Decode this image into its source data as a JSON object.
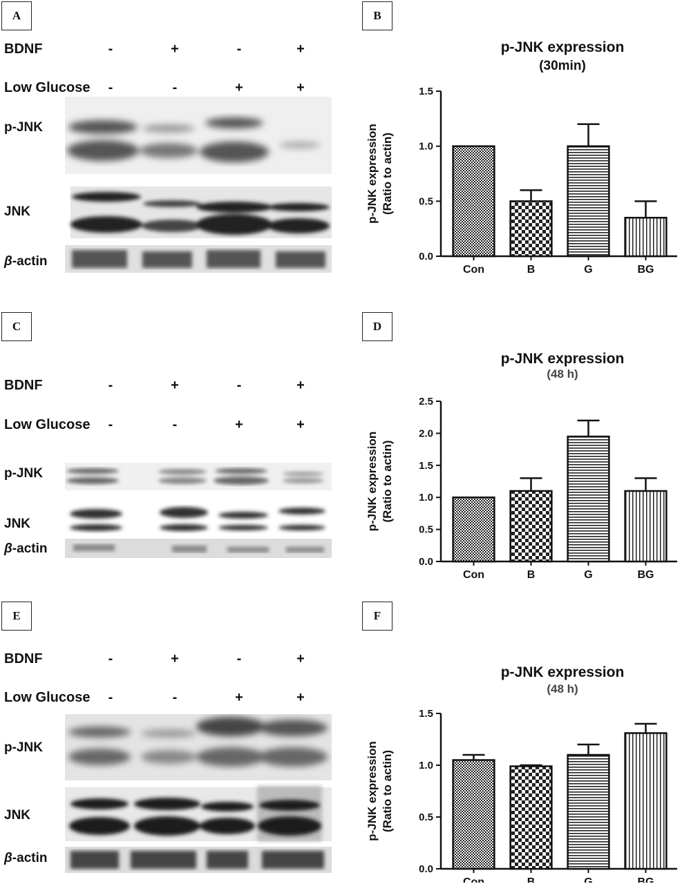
{
  "panels": {
    "A": "A",
    "B": "B",
    "C": "C",
    "D": "D",
    "E": "E",
    "F": "F"
  },
  "blot_labels": {
    "bdnf": "BDNF",
    "low_glucose": "Low Glucose",
    "p_jnk": "p-JNK",
    "jnk": "JNK",
    "beta_symbol": "β",
    "actin": "-actin"
  },
  "conditions": {
    "bdnf": [
      "-",
      "+",
      "-",
      "+"
    ],
    "low_glucose": [
      "-",
      "-",
      "+",
      "+"
    ]
  },
  "chart_data": [
    {
      "type": "bar",
      "title": "p-JNK expression",
      "subtitle": "(30min)",
      "ylabel_line1": "p-JNK expression",
      "ylabel_line2": "(Ratio to actin)",
      "categories": [
        "Con",
        "B",
        "G",
        "BG"
      ],
      "values": [
        1.0,
        0.5,
        1.0,
        0.35
      ],
      "errors": [
        0,
        0.1,
        0.2,
        0.15
      ],
      "ylim": [
        0,
        1.5
      ],
      "yticks": [
        "0.0",
        "0.5",
        "1.0",
        "1.5"
      ],
      "patterns": [
        "fine-check",
        "checker",
        "horizontal",
        "vertical"
      ],
      "grid": false
    },
    {
      "type": "bar",
      "title": "p-JNK expression",
      "subtitle": "(48 h)",
      "ylabel_line1": "p-JNK expression",
      "ylabel_line2": "(Ratio to actin)",
      "categories": [
        "Con",
        "B",
        "G",
        "BG"
      ],
      "values": [
        1.0,
        1.1,
        1.95,
        1.1
      ],
      "errors": [
        0,
        0.2,
        0.25,
        0.2
      ],
      "ylim": [
        0,
        2.5
      ],
      "yticks": [
        "0.0",
        "0.5",
        "1.0",
        "1.5",
        "2.0",
        "2.5"
      ],
      "patterns": [
        "fine-check",
        "checker",
        "horizontal",
        "vertical"
      ],
      "grid": false
    },
    {
      "type": "bar",
      "title": "p-JNK expression",
      "subtitle": "(48 h)",
      "ylabel_line1": "p-JNK expression",
      "ylabel_line2": "(Ratio to actin)",
      "categories": [
        "Con",
        "B",
        "G",
        "BG"
      ],
      "values": [
        1.05,
        0.99,
        1.1,
        1.31
      ],
      "errors": [
        0.05,
        0.01,
        0.1,
        0.09
      ],
      "ylim": [
        0,
        1.5
      ],
      "yticks": [
        "0.0",
        "0.5",
        "1.0",
        "1.5"
      ],
      "patterns": [
        "fine-check",
        "checker",
        "horizontal",
        "vertical"
      ],
      "grid": false
    }
  ]
}
